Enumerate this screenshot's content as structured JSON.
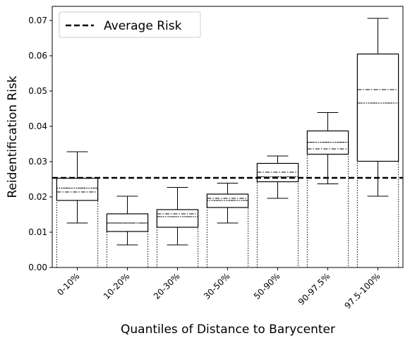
{
  "chart_data": {
    "type": "box",
    "xlabel": "Quantiles of Distance to Barycenter",
    "ylabel": "Reidentification Risk",
    "ylim": [
      0.0,
      0.074
    ],
    "yticks": [
      "0.00",
      "0.01",
      "0.02",
      "0.03",
      "0.04",
      "0.05",
      "0.06",
      "0.07"
    ],
    "ytick_values": [
      0.0,
      0.01,
      0.02,
      0.03,
      0.04,
      0.05,
      0.06,
      0.07
    ],
    "reference_line": {
      "label": "Average Risk",
      "value": 0.0254,
      "style": "dashed"
    },
    "legend": {
      "position": "top-left",
      "entries": [
        "Average Risk"
      ]
    },
    "grid": false,
    "categories": [
      "0-10%",
      "10-20%",
      "20-30%",
      "30-50%",
      "50-90%",
      "90-97.5%",
      "97.5-100%"
    ],
    "boxes": [
      {
        "whisker_low": 0.0126,
        "q1": 0.019,
        "median": 0.0214,
        "mean": 0.0225,
        "q3": 0.0253,
        "whisker_high": 0.0328
      },
      {
        "whisker_low": 0.0064,
        "q1": 0.0102,
        "median": 0.0126,
        "mean": 0.0126,
        "q3": 0.0152,
        "whisker_high": 0.0202
      },
      {
        "whisker_low": 0.0064,
        "q1": 0.0114,
        "median": 0.0152,
        "mean": 0.0144,
        "q3": 0.0164,
        "whisker_high": 0.0227
      },
      {
        "whisker_low": 0.0126,
        "q1": 0.017,
        "median": 0.0196,
        "mean": 0.019,
        "q3": 0.0208,
        "whisker_high": 0.0239
      },
      {
        "whisker_low": 0.0196,
        "q1": 0.0243,
        "median": 0.027,
        "mean": 0.0257,
        "q3": 0.0295,
        "whisker_high": 0.0316
      },
      {
        "whisker_low": 0.0237,
        "q1": 0.0321,
        "median": 0.0336,
        "mean": 0.0355,
        "q3": 0.0387,
        "whisker_high": 0.0439
      },
      {
        "whisker_low": 0.0202,
        "q1": 0.0301,
        "median": 0.0504,
        "mean": 0.0466,
        "q3": 0.0605,
        "whisker_high": 0.0706
      }
    ]
  }
}
